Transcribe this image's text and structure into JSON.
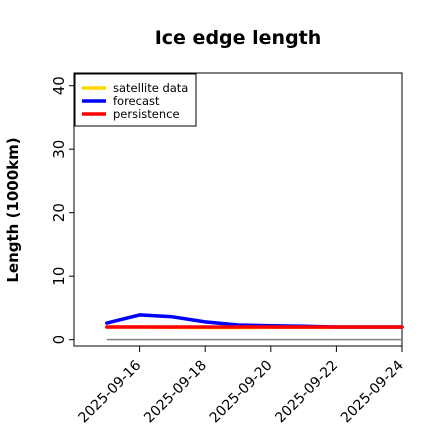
{
  "chart_data": {
    "type": "line",
    "title": "Ice edge length",
    "xlabel": "",
    "ylabel": "Length (1000km)",
    "ylim": [
      -1,
      42
    ],
    "xlim": [
      "2025-09-14",
      "2025-09-24"
    ],
    "y_ticks": [
      0,
      10,
      20,
      30,
      40
    ],
    "x_ticks": [
      {
        "label": "2025-09-16",
        "color": "#228b22"
      },
      {
        "label": "2025-09-18",
        "color": "#000000"
      },
      {
        "label": "2025-09-20",
        "color": "#000000"
      },
      {
        "label": "2025-09-22",
        "color": "#000000"
      },
      {
        "label": "2025-09-24",
        "color": "#000000"
      }
    ],
    "grid": false,
    "legend_position": "top-left",
    "series": [
      {
        "name": "satellite data",
        "color": "#ffd700",
        "x": [
          "2025-09-15",
          "2025-09-16",
          "2025-09-17",
          "2025-09-18",
          "2025-09-19",
          "2025-09-20",
          "2025-09-21",
          "2025-09-22",
          "2025-09-23",
          "2025-09-24"
        ],
        "y": [
          2.0,
          2.0,
          1.95,
          1.9,
          1.9,
          1.95,
          1.95,
          1.95,
          1.95,
          1.95
        ]
      },
      {
        "name": "forecast",
        "color": "#0000ff",
        "x": [
          "2025-09-15",
          "2025-09-16",
          "2025-09-17",
          "2025-09-18",
          "2025-09-19",
          "2025-09-20",
          "2025-09-21",
          "2025-09-22",
          "2025-09-23",
          "2025-09-24"
        ],
        "y": [
          2.6,
          3.9,
          3.6,
          2.8,
          2.3,
          2.2,
          2.1,
          2.0,
          2.0,
          2.0
        ]
      },
      {
        "name": "persistence",
        "color": "#ff0000",
        "x": [
          "2025-09-15",
          "2025-09-16",
          "2025-09-17",
          "2025-09-18",
          "2025-09-19",
          "2025-09-20",
          "2025-09-21",
          "2025-09-22",
          "2025-09-23",
          "2025-09-24"
        ],
        "y": [
          2.0,
          2.0,
          2.0,
          2.0,
          2.0,
          2.0,
          2.0,
          2.0,
          2.0,
          2.0
        ]
      }
    ],
    "baseline": {
      "color": "#808080",
      "y": 0,
      "x": [
        "2025-09-15",
        "2025-09-24"
      ]
    }
  }
}
